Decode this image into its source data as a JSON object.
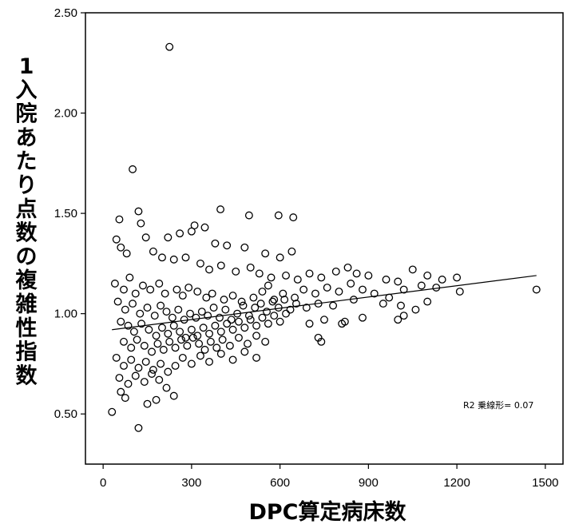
{
  "chart_data": {
    "type": "scatter",
    "xlabel": "DPC算定病床数",
    "ylabel": "1入院あたり点数の複雑性指数",
    "annotation": "R2 乗線形= 0.07",
    "xlim": [
      -60,
      1560
    ],
    "ylim": [
      0.25,
      2.5
    ],
    "x_ticks": [
      0,
      300,
      600,
      900,
      1200,
      1500
    ],
    "x_tick_labels": [
      "0",
      "300",
      "600",
      "900",
      "1200",
      "1500"
    ],
    "y_ticks": [
      0.5,
      1.0,
      1.5,
      2.0,
      2.5
    ],
    "y_tick_labels": [
      "0.50",
      "1.00",
      "1.50",
      "2.00",
      "2.50"
    ],
    "grid": false,
    "marker": "open-circle",
    "fit_line": {
      "type": "linear",
      "x": [
        30,
        1470
      ],
      "y": [
        0.92,
        1.19
      ]
    },
    "series": [
      {
        "values": [
          [
            225,
            2.33
          ],
          [
            100,
            1.72
          ],
          [
            398,
            1.52
          ],
          [
            120,
            1.51
          ],
          [
            595,
            1.49
          ],
          [
            645,
            1.48
          ],
          [
            495,
            1.49
          ],
          [
            55,
            1.47
          ],
          [
            310,
            1.44
          ],
          [
            345,
            1.43
          ],
          [
            128,
            1.45
          ],
          [
            45,
            1.37
          ],
          [
            145,
            1.38
          ],
          [
            220,
            1.38
          ],
          [
            260,
            1.4
          ],
          [
            300,
            1.41
          ],
          [
            380,
            1.35
          ],
          [
            420,
            1.34
          ],
          [
            480,
            1.33
          ],
          [
            550,
            1.3
          ],
          [
            600,
            1.28
          ],
          [
            640,
            1.31
          ],
          [
            60,
            1.33
          ],
          [
            80,
            1.3
          ],
          [
            170,
            1.31
          ],
          [
            200,
            1.28
          ],
          [
            240,
            1.27
          ],
          [
            280,
            1.28
          ],
          [
            330,
            1.25
          ],
          [
            360,
            1.22
          ],
          [
            400,
            1.24
          ],
          [
            450,
            1.21
          ],
          [
            500,
            1.23
          ],
          [
            530,
            1.2
          ],
          [
            570,
            1.18
          ],
          [
            620,
            1.19
          ],
          [
            660,
            1.17
          ],
          [
            700,
            1.2
          ],
          [
            740,
            1.18
          ],
          [
            790,
            1.21
          ],
          [
            830,
            1.23
          ],
          [
            860,
            1.2
          ],
          [
            900,
            1.19
          ],
          [
            960,
            1.17
          ],
          [
            1000,
            1.16
          ],
          [
            1050,
            1.22
          ],
          [
            1100,
            1.19
          ],
          [
            1150,
            1.17
          ],
          [
            1200,
            1.18
          ],
          [
            40,
            1.15
          ],
          [
            70,
            1.12
          ],
          [
            90,
            1.18
          ],
          [
            110,
            1.1
          ],
          [
            135,
            1.14
          ],
          [
            160,
            1.12
          ],
          [
            190,
            1.15
          ],
          [
            210,
            1.1
          ],
          [
            250,
            1.12
          ],
          [
            270,
            1.09
          ],
          [
            290,
            1.13
          ],
          [
            320,
            1.11
          ],
          [
            350,
            1.08
          ],
          [
            370,
            1.1
          ],
          [
            410,
            1.07
          ],
          [
            440,
            1.09
          ],
          [
            470,
            1.06
          ],
          [
            510,
            1.08
          ],
          [
            540,
            1.11
          ],
          [
            560,
            1.14
          ],
          [
            580,
            1.07
          ],
          [
            610,
            1.1
          ],
          [
            650,
            1.08
          ],
          [
            680,
            1.12
          ],
          [
            720,
            1.1
          ],
          [
            760,
            1.13
          ],
          [
            800,
            1.11
          ],
          [
            840,
            1.15
          ],
          [
            880,
            1.12
          ],
          [
            920,
            1.1
          ],
          [
            970,
            1.08
          ],
          [
            1020,
            1.12
          ],
          [
            1080,
            1.14
          ],
          [
            1130,
            1.13
          ],
          [
            1210,
            1.11
          ],
          [
            50,
            1.06
          ],
          [
            75,
            1.02
          ],
          [
            100,
            1.05
          ],
          [
            125,
            1.0
          ],
          [
            150,
            1.03
          ],
          [
            175,
            0.99
          ],
          [
            195,
            1.04
          ],
          [
            215,
            1.01
          ],
          [
            235,
            0.98
          ],
          [
            255,
            1.02
          ],
          [
            275,
            0.97
          ],
          [
            295,
            1.0
          ],
          [
            315,
            0.98
          ],
          [
            335,
            1.01
          ],
          [
            355,
            0.99
          ],
          [
            375,
            1.03
          ],
          [
            395,
            0.98
          ],
          [
            415,
            1.02
          ],
          [
            435,
            0.97
          ],
          [
            455,
            1.0
          ],
          [
            475,
            1.04
          ],
          [
            495,
            0.99
          ],
          [
            515,
            1.03
          ],
          [
            535,
            1.05
          ],
          [
            555,
            1.01
          ],
          [
            575,
            1.06
          ],
          [
            595,
            1.03
          ],
          [
            615,
            1.07
          ],
          [
            635,
            1.02
          ],
          [
            655,
            1.05
          ],
          [
            690,
            1.03
          ],
          [
            730,
            1.05
          ],
          [
            780,
            1.04
          ],
          [
            850,
            1.07
          ],
          [
            950,
            1.05
          ],
          [
            1010,
            1.04
          ],
          [
            1060,
            1.02
          ],
          [
            1100,
            1.06
          ],
          [
            60,
            0.96
          ],
          [
            85,
            0.94
          ],
          [
            105,
            0.91
          ],
          [
            130,
            0.95
          ],
          [
            155,
            0.92
          ],
          [
            180,
            0.89
          ],
          [
            200,
            0.93
          ],
          [
            220,
            0.9
          ],
          [
            240,
            0.94
          ],
          [
            260,
            0.91
          ],
          [
            280,
            0.88
          ],
          [
            300,
            0.92
          ],
          [
            320,
            0.89
          ],
          [
            340,
            0.93
          ],
          [
            360,
            0.9
          ],
          [
            380,
            0.94
          ],
          [
            400,
            0.91
          ],
          [
            420,
            0.95
          ],
          [
            440,
            0.92
          ],
          [
            460,
            0.96
          ],
          [
            480,
            0.93
          ],
          [
            500,
            0.97
          ],
          [
            520,
            0.94
          ],
          [
            540,
            0.98
          ],
          [
            560,
            0.95
          ],
          [
            580,
            0.99
          ],
          [
            600,
            0.96
          ],
          [
            620,
            1.0
          ],
          [
            700,
            0.95
          ],
          [
            750,
            0.97
          ],
          [
            820,
            0.96
          ],
          [
            880,
            0.98
          ],
          [
            1000,
            0.97
          ],
          [
            1020,
            0.99
          ],
          [
            70,
            0.86
          ],
          [
            95,
            0.83
          ],
          [
            115,
            0.87
          ],
          [
            140,
            0.84
          ],
          [
            165,
            0.81
          ],
          [
            185,
            0.85
          ],
          [
            205,
            0.82
          ],
          [
            225,
            0.86
          ],
          [
            245,
            0.83
          ],
          [
            265,
            0.87
          ],
          [
            285,
            0.84
          ],
          [
            305,
            0.88
          ],
          [
            325,
            0.85
          ],
          [
            345,
            0.82
          ],
          [
            365,
            0.86
          ],
          [
            385,
            0.83
          ],
          [
            405,
            0.87
          ],
          [
            430,
            0.84
          ],
          [
            460,
            0.88
          ],
          [
            490,
            0.85
          ],
          [
            520,
            0.89
          ],
          [
            550,
            0.86
          ],
          [
            730,
            0.88
          ],
          [
            740,
            0.86
          ],
          [
            810,
            0.95
          ],
          [
            45,
            0.78
          ],
          [
            70,
            0.74
          ],
          [
            95,
            0.77
          ],
          [
            120,
            0.73
          ],
          [
            145,
            0.76
          ],
          [
            170,
            0.72
          ],
          [
            195,
            0.75
          ],
          [
            220,
            0.71
          ],
          [
            245,
            0.74
          ],
          [
            270,
            0.78
          ],
          [
            300,
            0.75
          ],
          [
            330,
            0.79
          ],
          [
            360,
            0.76
          ],
          [
            400,
            0.8
          ],
          [
            440,
            0.77
          ],
          [
            480,
            0.81
          ],
          [
            520,
            0.78
          ],
          [
            55,
            0.68
          ],
          [
            85,
            0.65
          ],
          [
            110,
            0.69
          ],
          [
            140,
            0.66
          ],
          [
            165,
            0.7
          ],
          [
            190,
            0.67
          ],
          [
            215,
            0.63
          ],
          [
            60,
            0.61
          ],
          [
            75,
            0.58
          ],
          [
            150,
            0.55
          ],
          [
            180,
            0.57
          ],
          [
            240,
            0.59
          ],
          [
            30,
            0.51
          ],
          [
            120,
            0.43
          ],
          [
            1470,
            1.12
          ]
        ]
      }
    ]
  }
}
